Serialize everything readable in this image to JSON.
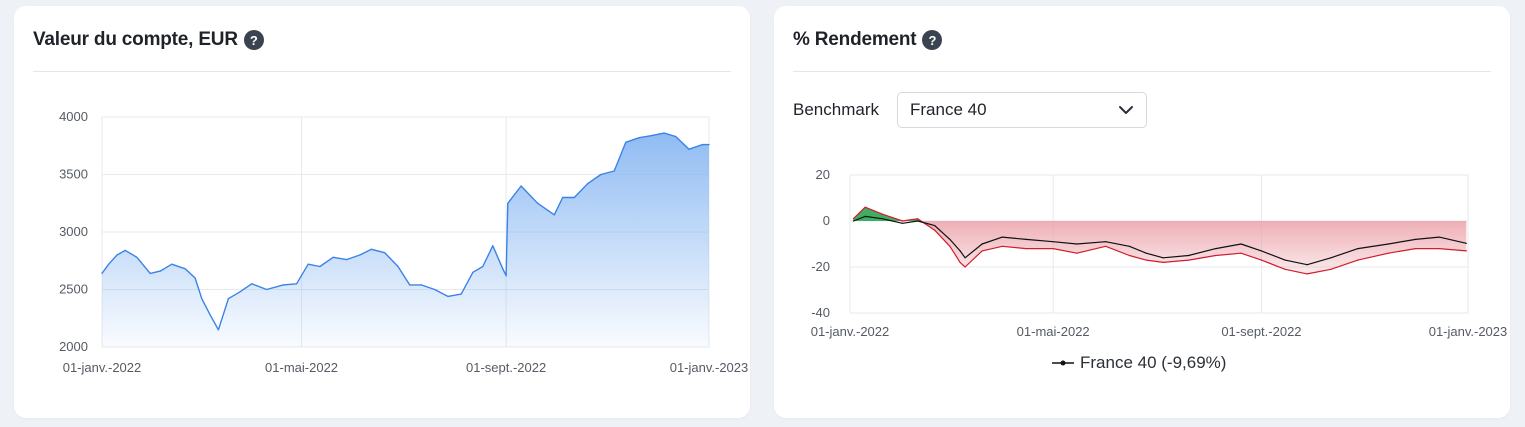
{
  "left_card": {
    "title": "Valeur du compte, EUR",
    "help": "?"
  },
  "right_card": {
    "title": "% Rendement",
    "help": "?",
    "benchmark_label": "Benchmark",
    "benchmark_value": "France 40",
    "legend_label": "France 40 (-9,69%)"
  },
  "colors": {
    "account_line": "#3b82e8",
    "account_fill_top": "#8ab8f2",
    "benchmark_line": "#111111",
    "portfolio_line": "#d21c2c",
    "gain_fill": "#3fae63",
    "loss_fill": "#ea9aa3"
  },
  "chart_data": [
    {
      "type": "area",
      "title": "Valeur du compte, EUR",
      "x_start": "2022-01-01",
      "x_end": "2023-01-01",
      "ylim": [
        2000,
        4000
      ],
      "yticks": [
        "4000",
        "3500",
        "3000",
        "2500",
        "2000"
      ],
      "xticks": [
        {
          "date": "2022-01-01",
          "label": "01-janv.-2022"
        },
        {
          "date": "2022-05-01",
          "label": "01-mai-2022"
        },
        {
          "date": "2022-09-01",
          "label": "01-sept.-2022"
        },
        {
          "date": "2023-01-01",
          "label": "01-janv.-2023"
        }
      ],
      "grid": true,
      "series": [
        {
          "x": [
            "2022-01-01",
            "2022-01-05",
            "2022-01-10",
            "2022-01-15",
            "2022-01-22",
            "2022-01-30",
            "2022-02-05",
            "2022-02-12",
            "2022-02-20",
            "2022-02-26",
            "2022-03-02",
            "2022-03-07",
            "2022-03-12",
            "2022-03-18",
            "2022-03-25",
            "2022-04-01",
            "2022-04-10",
            "2022-04-20",
            "2022-04-28",
            "2022-05-05",
            "2022-05-12",
            "2022-05-20",
            "2022-05-28",
            "2022-06-05",
            "2022-06-12",
            "2022-06-20",
            "2022-06-28",
            "2022-07-05",
            "2022-07-12",
            "2022-07-20",
            "2022-07-28",
            "2022-08-05",
            "2022-08-12",
            "2022-08-18",
            "2022-08-24",
            "2022-08-30",
            "2022-09-01",
            "2022-09-02",
            "2022-09-10",
            "2022-09-20",
            "2022-09-30",
            "2022-10-05",
            "2022-10-12",
            "2022-10-20",
            "2022-10-28",
            "2022-11-05",
            "2022-11-12",
            "2022-11-20",
            "2022-11-28",
            "2022-12-05",
            "2022-12-12",
            "2022-12-20",
            "2022-12-28",
            "2023-01-01"
          ],
          "y": [
            2640,
            2720,
            2800,
            2840,
            2780,
            2640,
            2660,
            2720,
            2680,
            2600,
            2420,
            2280,
            2150,
            2420,
            2480,
            2550,
            2500,
            2540,
            2550,
            2720,
            2700,
            2780,
            2760,
            2800,
            2850,
            2820,
            2700,
            2540,
            2540,
            2500,
            2440,
            2460,
            2650,
            2700,
            2880,
            2680,
            2620,
            3250,
            3400,
            3250,
            3150,
            3300,
            3300,
            3420,
            3500,
            3530,
            3780,
            3820,
            3840,
            3860,
            3830,
            3720,
            3760,
            3760
          ]
        }
      ]
    },
    {
      "type": "line",
      "title": "% Rendement",
      "x_start": "2022-01-01",
      "x_end": "2023-01-01",
      "ylim": [
        -40,
        20
      ],
      "yticks": [
        "20",
        "0",
        "-20",
        "-40"
      ],
      "xticks": [
        {
          "date": "2022-01-01",
          "label": "01-janv.-2022"
        },
        {
          "date": "2022-05-01",
          "label": "01-mai-2022"
        },
        {
          "date": "2022-09-01",
          "label": "01-sept.-2022"
        },
        {
          "date": "2023-01-01",
          "label": "01-janv.-2023"
        }
      ],
      "grid": true,
      "legend": "bottom",
      "series": [
        {
          "name": "France 40",
          "x": [
            "2022-01-03",
            "2022-01-10",
            "2022-01-20",
            "2022-02-01",
            "2022-02-10",
            "2022-02-20",
            "2022-03-01",
            "2022-03-07",
            "2022-03-10",
            "2022-03-20",
            "2022-04-01",
            "2022-04-15",
            "2022-05-01",
            "2022-05-15",
            "2022-06-01",
            "2022-06-15",
            "2022-06-25",
            "2022-07-05",
            "2022-07-20",
            "2022-08-05",
            "2022-08-20",
            "2022-09-01",
            "2022-09-15",
            "2022-09-28",
            "2022-10-12",
            "2022-10-28",
            "2022-11-15",
            "2022-12-01",
            "2022-12-15",
            "2022-12-31"
          ],
          "y": [
            0,
            2,
            1,
            -1,
            0,
            -2,
            -8,
            -13,
            -16,
            -10,
            -7,
            -8,
            -9,
            -10,
            -9,
            -11,
            -14,
            -16,
            -15,
            -12,
            -10,
            -13,
            -17,
            -19,
            -16,
            -12,
            -10,
            -8,
            -7,
            -9.69
          ]
        },
        {
          "x": [
            "2022-01-03",
            "2022-01-10",
            "2022-01-20",
            "2022-02-01",
            "2022-02-10",
            "2022-02-20",
            "2022-03-01",
            "2022-03-07",
            "2022-03-10",
            "2022-03-20",
            "2022-04-01",
            "2022-04-15",
            "2022-05-01",
            "2022-05-15",
            "2022-06-01",
            "2022-06-15",
            "2022-06-25",
            "2022-07-05",
            "2022-07-20",
            "2022-08-05",
            "2022-08-20",
            "2022-09-01",
            "2022-09-15",
            "2022-09-28",
            "2022-10-12",
            "2022-10-28",
            "2022-11-15",
            "2022-12-01",
            "2022-12-15",
            "2022-12-31"
          ],
          "y": [
            1,
            6,
            3,
            0,
            1,
            -4,
            -11,
            -18,
            -20,
            -13,
            -11,
            -12,
            -12,
            -14,
            -11,
            -15,
            -17,
            -18,
            -17,
            -15,
            -14,
            -17,
            -21,
            -23,
            -21,
            -17,
            -14,
            -12,
            -12,
            -13
          ]
        }
      ]
    }
  ]
}
